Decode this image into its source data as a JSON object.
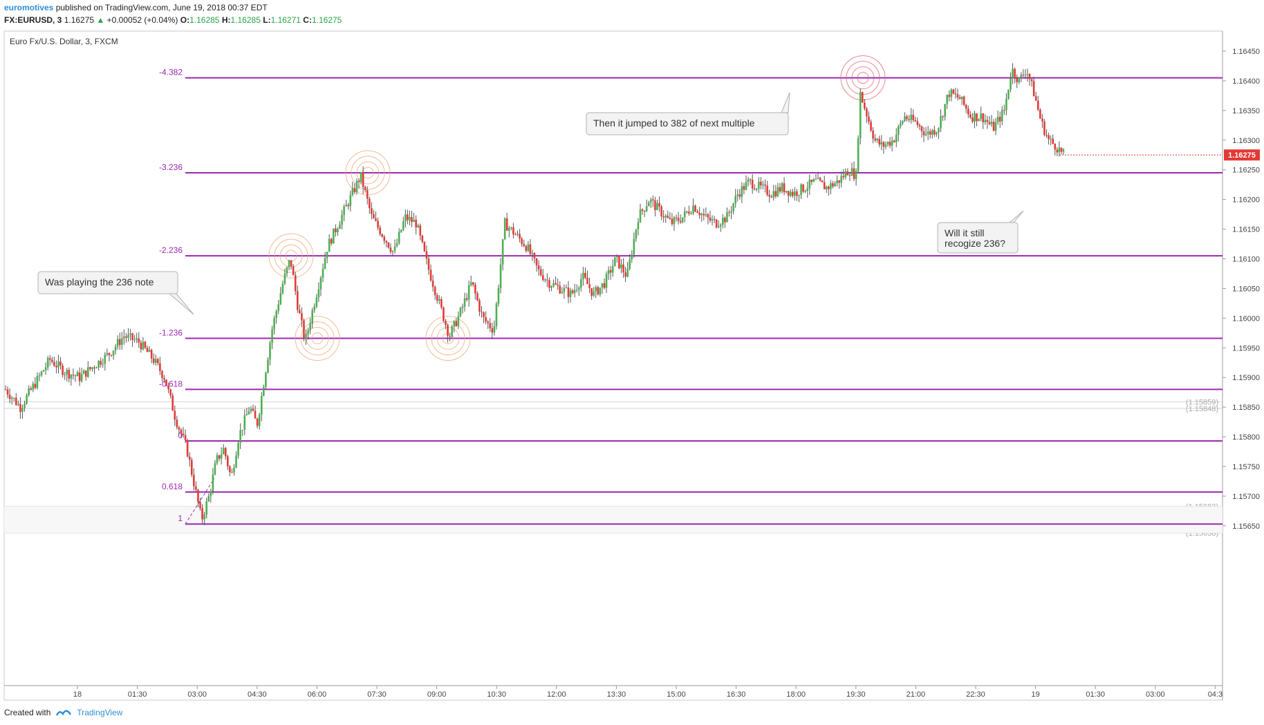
{
  "header": {
    "author": "euromotives",
    "published_text": "published on TradingView.com, June 19, 2018 00:37 EDT"
  },
  "symbol_line": {
    "symbol": "FX:EURUSD, 3",
    "last": "1.16275",
    "change": "+0.00052 (+0.04%)",
    "open_label": "O:",
    "open": "1.16285",
    "high_label": "H:",
    "high": "1.16285",
    "low_label": "L:",
    "low": "1.16271",
    "close_label": "C:",
    "close": "1.16275"
  },
  "chart_title": "Euro Fx/U.S. Dollar, 3, FXCM",
  "footer": {
    "created_with": "Created with",
    "brand": "TradingView"
  },
  "colors": {
    "fib_line": "#9c27b0",
    "fib_label": "#9c27b0",
    "up_candle": "#4caf50",
    "down_candle": "#e53935",
    "price_badge": "#e53935",
    "circle": "#f0a070"
  },
  "chart_data": {
    "type": "candlestick",
    "title": "Euro Fx/U.S. Dollar, 3, FXCM",
    "y_axis_ticks": [
      1.1645,
      1.164,
      1.1635,
      1.163,
      1.1625,
      1.162,
      1.1615,
      1.161,
      1.1605,
      1.16,
      1.1595,
      1.159,
      1.1585,
      1.158,
      1.1575,
      1.157,
      1.1565
    ],
    "ylim": [
      1.1562,
      1.1648
    ],
    "x_axis_ticks": [
      "18",
      "01:30",
      "03:00",
      "04:30",
      "06:00",
      "07:30",
      "09:00",
      "10:30",
      "12:00",
      "13:30",
      "15:00",
      "16:30",
      "18:00",
      "19:30",
      "21:00",
      "22:30",
      "19",
      "01:30",
      "03:00",
      "04:3"
    ],
    "current_price": "1.16275",
    "current_price_value": 1.16275,
    "fib_levels": [
      {
        "label": "-4.382",
        "price": 1.16405
      },
      {
        "label": "-3.236",
        "price": 1.16245
      },
      {
        "label": "-2.236",
        "price": 1.16105
      },
      {
        "label": "-1.236",
        "price": 1.15966
      },
      {
        "label": "-0.618",
        "price": 1.1588
      },
      {
        "label": "0",
        "price": 1.15793
      },
      {
        "label": "0.618",
        "price": 1.15707
      },
      {
        "label": "1",
        "price": 1.15653
      }
    ],
    "gray_levels": [
      {
        "label": "(1.15859)",
        "price": 1.15859
      },
      {
        "label": "(1.15848)",
        "price": 1.15848
      },
      {
        "label": "(1.15683)",
        "price": 1.15683
      },
      {
        "label": "(1.15638)",
        "price": 1.15638
      }
    ],
    "annotations": [
      {
        "text": "Was playing the 236 note"
      },
      {
        "text": "Then it jumped to 382 of next multiple"
      },
      {
        "text_lines": [
          "Will it still",
          "recogize 236?"
        ]
      }
    ],
    "path": [
      [
        0,
        1.1588
      ],
      [
        4,
        1.1585
      ],
      [
        8,
        1.1589
      ],
      [
        12,
        1.1593
      ],
      [
        16,
        1.1591
      ],
      [
        20,
        1.159
      ],
      [
        24,
        1.1592
      ],
      [
        28,
        1.1594
      ],
      [
        32,
        1.1597
      ],
      [
        36,
        1.1596
      ],
      [
        40,
        1.1593
      ],
      [
        43,
        1.159
      ],
      [
        46,
        1.1583
      ],
      [
        49,
        1.1578
      ],
      [
        51,
        1.1572
      ],
      [
        53,
        1.1566
      ],
      [
        55,
        1.157
      ],
      [
        57,
        1.1576
      ],
      [
        59,
        1.1578
      ],
      [
        61,
        1.1573
      ],
      [
        63,
        1.158
      ],
      [
        66,
        1.1585
      ],
      [
        68,
        1.1582
      ],
      [
        70,
        1.159
      ],
      [
        72,
        1.1598
      ],
      [
        75,
        1.1606
      ],
      [
        77,
        1.161
      ],
      [
        79,
        1.1602
      ],
      [
        81,
        1.1596
      ],
      [
        84,
        1.1604
      ],
      [
        87,
        1.1612
      ],
      [
        90,
        1.1616
      ],
      [
        93,
        1.162
      ],
      [
        96,
        1.1624
      ],
      [
        99,
        1.1617
      ],
      [
        102,
        1.1614
      ],
      [
        105,
        1.1611
      ],
      [
        108,
        1.1617
      ],
      [
        111,
        1.1616
      ],
      [
        114,
        1.1609
      ],
      [
        117,
        1.1603
      ],
      [
        120,
        1.1597
      ],
      [
        123,
        1.1601
      ],
      [
        126,
        1.1606
      ],
      [
        129,
        1.16
      ],
      [
        132,
        1.1598
      ],
      [
        135,
        1.1616
      ],
      [
        138,
        1.1614
      ],
      [
        141,
        1.1612
      ],
      [
        144,
        1.1608
      ],
      [
        147,
        1.1606
      ],
      [
        150,
        1.1605
      ],
      [
        153,
        1.1604
      ],
      [
        156,
        1.1607
      ],
      [
        159,
        1.1604
      ],
      [
        162,
        1.1606
      ],
      [
        165,
        1.161
      ],
      [
        168,
        1.1607
      ],
      [
        171,
        1.1617
      ],
      [
        174,
        1.162
      ],
      [
        177,
        1.1618
      ],
      [
        180,
        1.1616
      ],
      [
        183,
        1.1617
      ],
      [
        186,
        1.1619
      ],
      [
        189,
        1.1617
      ],
      [
        192,
        1.1616
      ],
      [
        195,
        1.1617
      ],
      [
        198,
        1.1621
      ],
      [
        201,
        1.1623
      ],
      [
        204,
        1.1622
      ],
      [
        207,
        1.1621
      ],
      [
        210,
        1.1622
      ],
      [
        213,
        1.1621
      ],
      [
        216,
        1.1622
      ],
      [
        219,
        1.1623
      ],
      [
        222,
        1.1622
      ],
      [
        225,
        1.1623
      ],
      [
        228,
        1.1625
      ],
      [
        230,
        1.1624
      ],
      [
        231,
        1.1638
      ],
      [
        233,
        1.1634
      ],
      [
        235,
        1.163
      ],
      [
        237,
        1.1629
      ],
      [
        240,
        1.163
      ],
      [
        243,
        1.1634
      ],
      [
        246,
        1.1633
      ],
      [
        249,
        1.1631
      ],
      [
        252,
        1.1632
      ],
      [
        255,
        1.1638
      ],
      [
        258,
        1.1637
      ],
      [
        261,
        1.1634
      ],
      [
        264,
        1.1634
      ],
      [
        267,
        1.1632
      ],
      [
        270,
        1.1635
      ],
      [
        272,
        1.1642
      ],
      [
        274,
        1.164
      ],
      [
        276,
        1.1642
      ],
      [
        278,
        1.1638
      ],
      [
        280,
        1.1633
      ],
      [
        282,
        1.163
      ],
      [
        284,
        1.1629
      ],
      [
        286,
        1.16275
      ]
    ]
  }
}
